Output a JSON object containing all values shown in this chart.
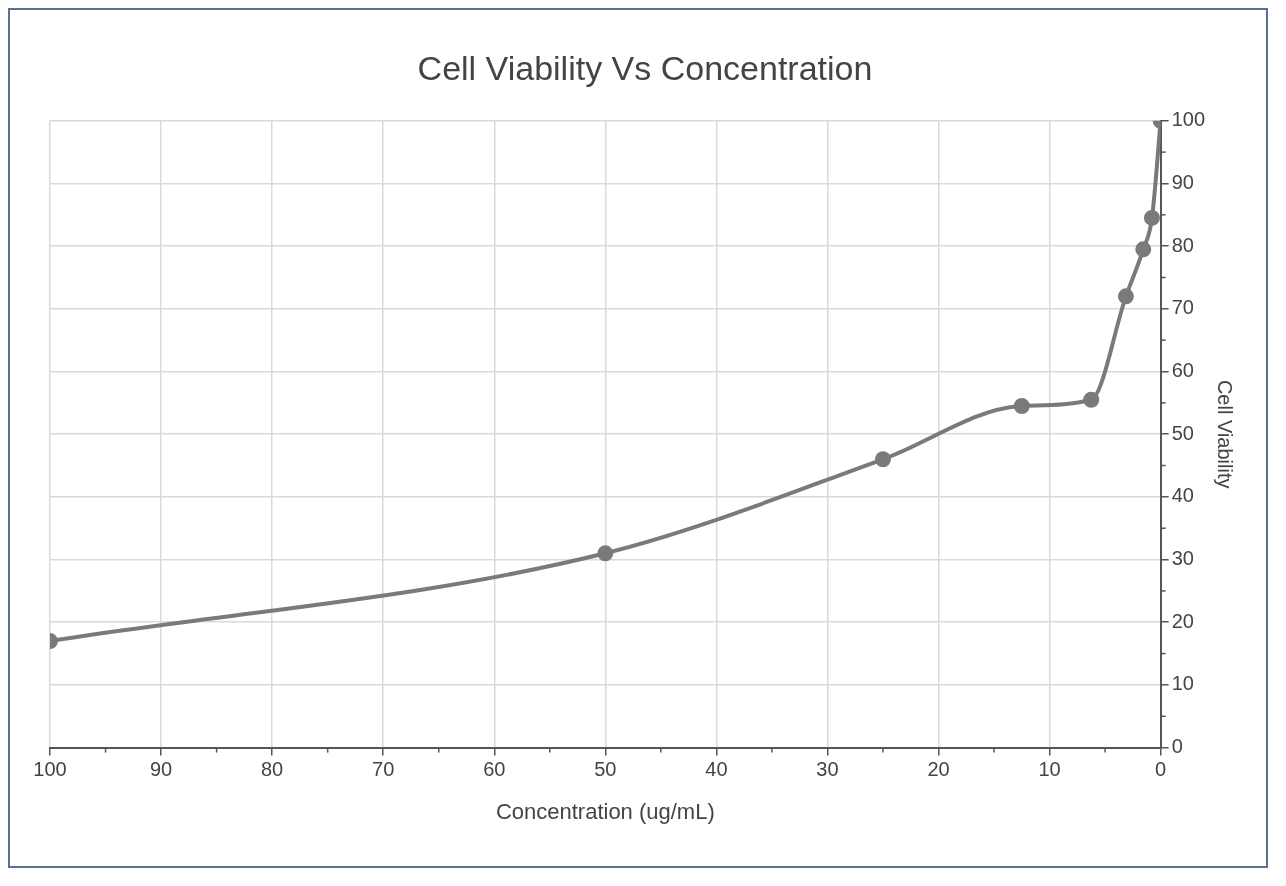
{
  "chart_data": {
    "type": "line",
    "title": "Cell Viability Vs Concentration",
    "xlabel": "Concentration (ug/mL)",
    "ylabel": "Cell Viability",
    "series": [
      {
        "color": "#7a7a7a",
        "x": [
          100,
          50,
          25,
          12.5,
          6.25,
          3.125,
          1.5625,
          0.78,
          0
        ],
        "values": [
          17,
          31,
          46,
          54.5,
          55.5,
          72,
          79.5,
          84.5,
          100
        ]
      }
    ],
    "xlim": [
      100,
      0
    ],
    "xticks": [
      100,
      90,
      80,
      70,
      60,
      50,
      40,
      30,
      20,
      10,
      0
    ],
    "ylim": [
      0,
      100
    ],
    "yticks": [
      0,
      10,
      20,
      30,
      40,
      50,
      60,
      70,
      80,
      90,
      100
    ],
    "grid": true,
    "legend": false,
    "marker": "circle",
    "line_style": "solid"
  }
}
